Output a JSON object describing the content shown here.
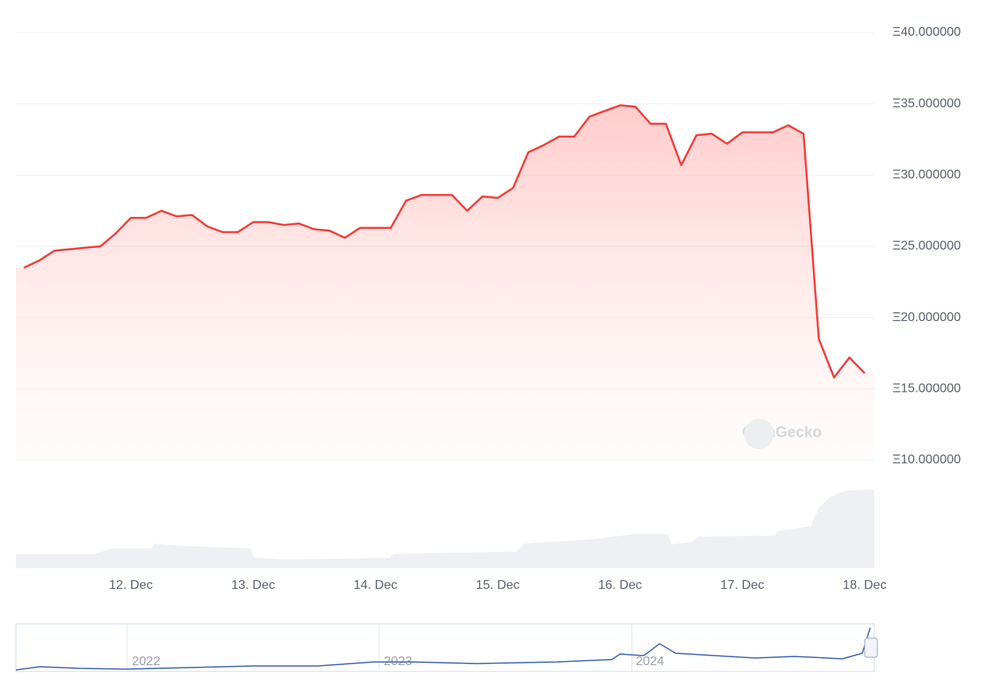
{
  "chart_data": {
    "type": "line",
    "categories": [
      null,
      null,
      null,
      null,
      null,
      null,
      null,
      "12. Dec",
      null,
      null,
      null,
      null,
      null,
      null,
      null,
      "13. Dec",
      null,
      null,
      null,
      null,
      null,
      null,
      null,
      "14. Dec",
      null,
      null,
      null,
      null,
      null,
      null,
      null,
      "15. Dec",
      null,
      null,
      null,
      null,
      null,
      null,
      null,
      "16. Dec",
      null,
      null,
      null,
      null,
      null,
      null,
      null,
      "17. Dec",
      null,
      null,
      null,
      null,
      null,
      null,
      null,
      "18. Dec"
    ],
    "values": [
      23.5,
      24.0,
      24.7,
      24.8,
      24.9,
      25.0,
      25.9,
      27.0,
      27.0,
      27.5,
      27.1,
      27.2,
      26.4,
      26.0,
      26.0,
      26.7,
      26.7,
      26.5,
      26.6,
      26.2,
      26.1,
      25.6,
      26.3,
      26.3,
      26.3,
      28.2,
      28.6,
      28.6,
      28.6,
      27.5,
      28.5,
      28.4,
      29.1,
      31.6,
      32.1,
      32.7,
      32.7,
      34.1,
      34.5,
      34.9,
      34.8,
      33.6,
      33.6,
      30.7,
      32.8,
      32.9,
      32.2,
      33.0,
      33.0,
      33.0,
      33.5,
      32.9,
      18.5,
      15.8,
      17.2,
      16.1
    ],
    "color": "#f23d3a",
    "ylim": [
      10,
      40
    ],
    "yticks": [
      {
        "value": 10,
        "label": "Ξ10.000000"
      },
      {
        "value": 15,
        "label": "Ξ15.000000"
      },
      {
        "value": 20,
        "label": "Ξ20.000000"
      },
      {
        "value": 25,
        "label": "Ξ25.000000"
      },
      {
        "value": 30,
        "label": "Ξ30.000000"
      },
      {
        "value": 35,
        "label": "Ξ35.000000"
      },
      {
        "value": 40,
        "label": "Ξ40.000000"
      }
    ],
    "grid": true
  },
  "watermark": "CoinGecko",
  "navigator": {
    "labels": [
      "2022",
      "2023",
      "2024"
    ]
  }
}
